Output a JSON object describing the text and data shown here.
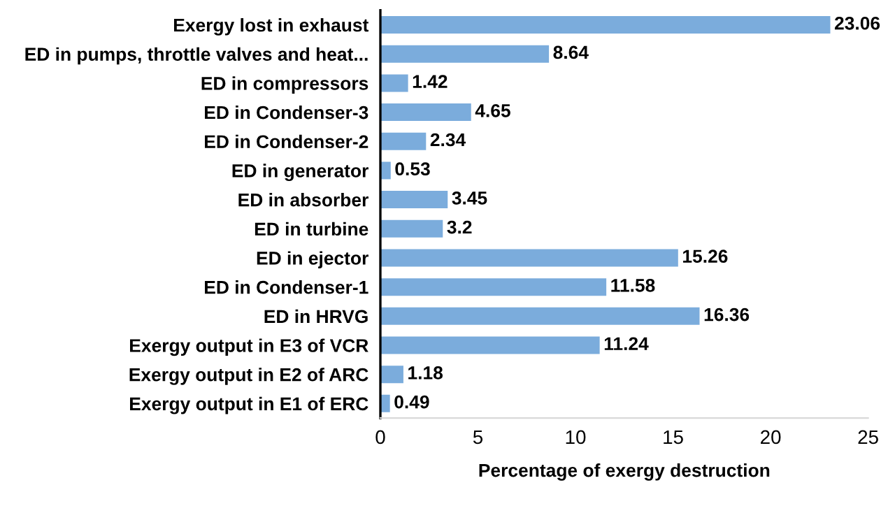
{
  "chart_data": {
    "type": "bar",
    "orientation": "horizontal",
    "xlabel": "Percentage of exergy destruction",
    "categories": [
      "Exergy lost in exhaust",
      "ED in pumps, throttle valves and heat...",
      "ED in compressors",
      "ED in Condenser-3",
      "ED in Condenser-2",
      "ED in generator",
      "ED in absorber",
      "ED in turbine",
      "ED in ejector",
      "ED in Condenser-1",
      "ED in HRVG",
      "Exergy output in E3 of VCR",
      "Exergy output in E2 of ARC",
      "Exergy output in E1 of ERC"
    ],
    "values": [
      23.06,
      8.64,
      1.42,
      4.65,
      2.34,
      0.53,
      3.45,
      3.2,
      15.26,
      11.58,
      16.36,
      11.24,
      1.18,
      0.49
    ],
    "color": "#7bacdc",
    "xlim": [
      0,
      25
    ],
    "xticks": [
      0,
      5,
      10,
      15,
      20,
      25
    ],
    "grid": false,
    "legend": false,
    "data_labels": true
  }
}
